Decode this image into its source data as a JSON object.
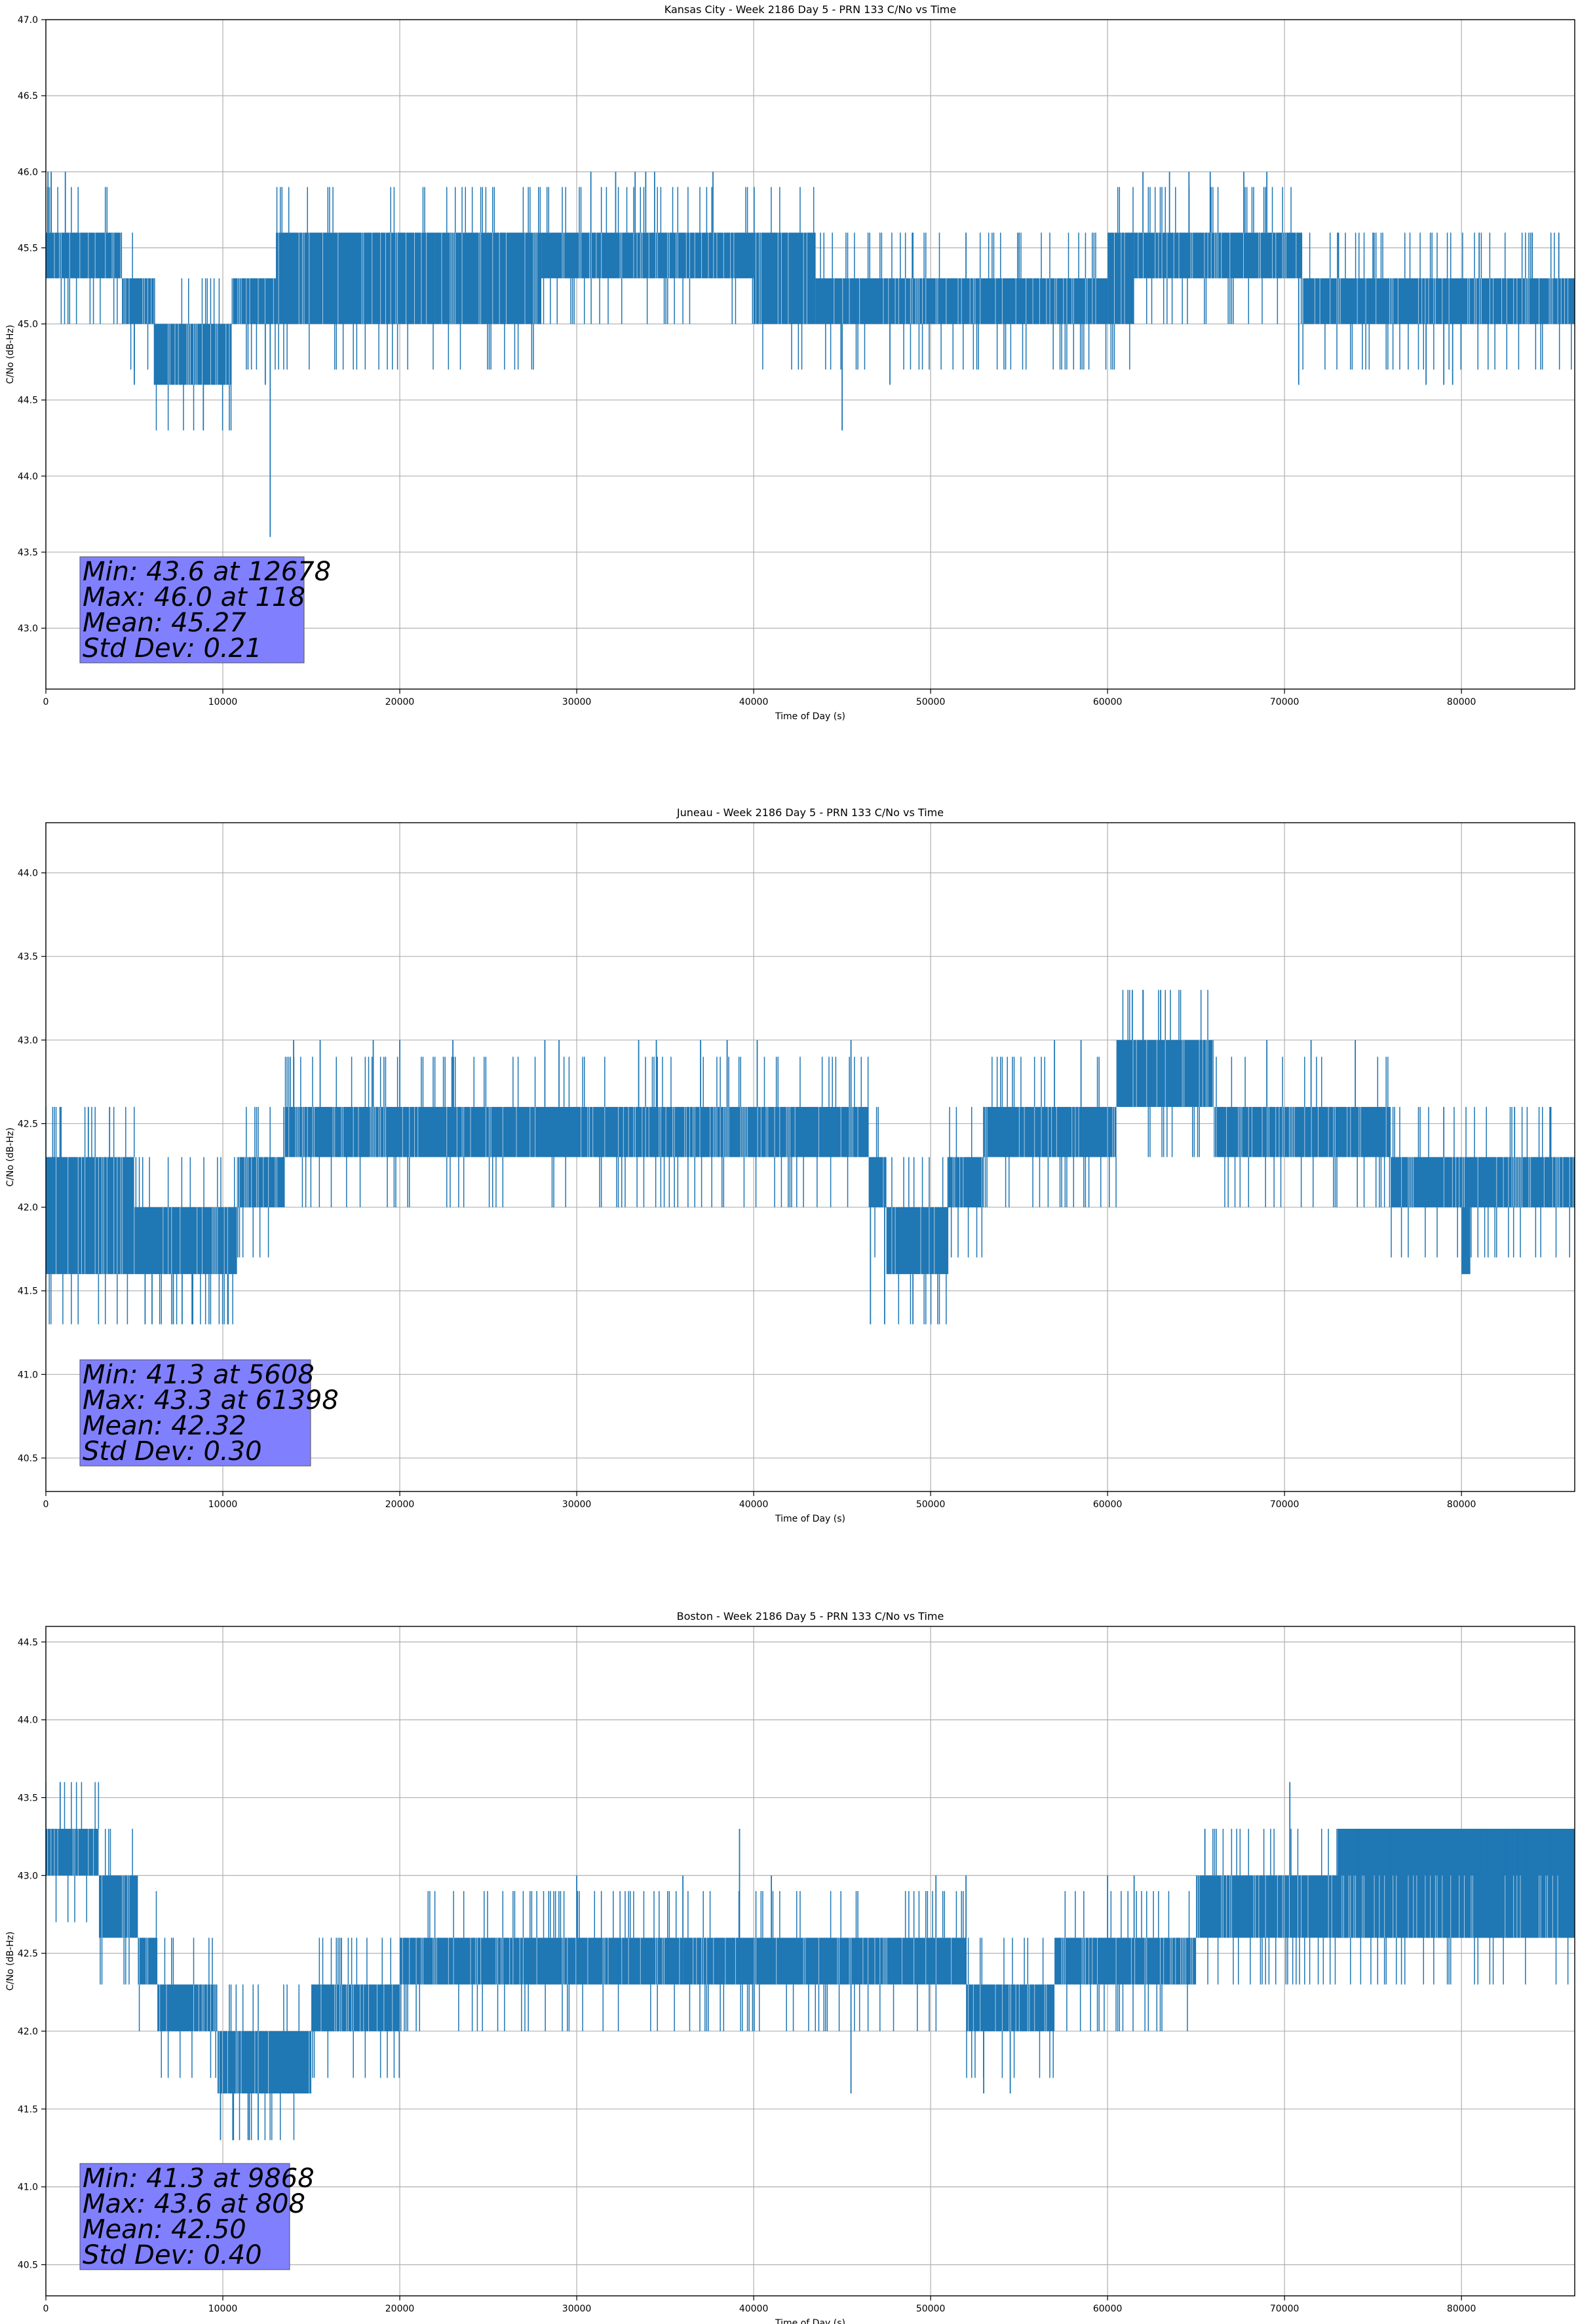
{
  "colors": {
    "series": "#1f77b4",
    "stats_box_fill": "#8080ff",
    "grid": "#b0b0b0",
    "background": "#ffffff"
  },
  "chart_data": [
    {
      "type": "line",
      "title": "Kansas City - Week 2186 Day 5 - PRN 133 C/No vs Time",
      "xlabel": "Time of Day (s)",
      "ylabel": "C/No (dB-Hz)",
      "xlim": [
        0,
        86400
      ],
      "ylim": [
        42.6,
        47.0
      ],
      "xticks": [
        0,
        10000,
        20000,
        30000,
        40000,
        50000,
        60000,
        70000,
        80000
      ],
      "yticks": [
        43.0,
        43.5,
        44.0,
        44.5,
        45.0,
        45.5,
        46.0,
        46.5,
        47.0
      ],
      "grid": true,
      "stats": [
        "Min: 43.6 at 12678",
        "Max: 46.0 at 118",
        "Mean: 45.27",
        "Std Dev: 0.21"
      ],
      "bands": [
        {
          "x": [
            0,
            2000
          ],
          "low": 45.3,
          "high": 45.6
        },
        {
          "x": [
            2000,
            4300
          ],
          "low": 45.3,
          "high": 45.6
        },
        {
          "x": [
            4300,
            5700
          ],
          "low": 45.0,
          "high": 45.3
        },
        {
          "x": [
            5700,
            6100
          ],
          "low": 45.0,
          "high": 45.3
        },
        {
          "x": [
            6100,
            10500
          ],
          "low": 44.6,
          "high": 45.0
        },
        {
          "x": [
            10500,
            13000
          ],
          "low": 45.0,
          "high": 45.3
        },
        {
          "x": [
            13000,
            22000
          ],
          "low": 45.0,
          "high": 45.6
        },
        {
          "x": [
            22000,
            28000
          ],
          "low": 45.0,
          "high": 45.6
        },
        {
          "x": [
            28000,
            40000
          ],
          "low": 45.3,
          "high": 45.6
        },
        {
          "x": [
            40000,
            43500
          ],
          "low": 45.0,
          "high": 45.6
        },
        {
          "x": [
            43500,
            60000
          ],
          "low": 45.0,
          "high": 45.3
        },
        {
          "x": [
            60000,
            61500
          ],
          "low": 45.0,
          "high": 45.6
        },
        {
          "x": [
            61500,
            71000
          ],
          "low": 45.3,
          "high": 45.6
        },
        {
          "x": [
            71000,
            86400
          ],
          "low": 45.0,
          "high": 45.3
        }
      ],
      "spikes": [
        {
          "x": 118,
          "y": 46.0
        },
        {
          "x": 300,
          "y": 46.0
        },
        {
          "x": 1100,
          "y": 46.0
        },
        {
          "x": 8900,
          "y": 44.3
        },
        {
          "x": 12678,
          "y": 43.6
        },
        {
          "x": 12400,
          "y": 44.6
        },
        {
          "x": 5000,
          "y": 44.6
        },
        {
          "x": 9800,
          "y": 44.6
        },
        {
          "x": 30800,
          "y": 46.0
        },
        {
          "x": 32200,
          "y": 46.0
        },
        {
          "x": 33300,
          "y": 46.0
        },
        {
          "x": 33900,
          "y": 46.0
        },
        {
          "x": 34400,
          "y": 46.0
        },
        {
          "x": 37700,
          "y": 46.0
        },
        {
          "x": 45000,
          "y": 44.3
        },
        {
          "x": 47700,
          "y": 44.6
        },
        {
          "x": 49000,
          "y": 45.6
        },
        {
          "x": 52000,
          "y": 45.6
        },
        {
          "x": 55000,
          "y": 45.6
        },
        {
          "x": 62000,
          "y": 46.0
        },
        {
          "x": 63500,
          "y": 46.0
        },
        {
          "x": 64600,
          "y": 46.0
        },
        {
          "x": 65800,
          "y": 46.0
        },
        {
          "x": 67700,
          "y": 46.0
        },
        {
          "x": 69000,
          "y": 46.0
        },
        {
          "x": 70800,
          "y": 44.6
        },
        {
          "x": 78000,
          "y": 44.6
        },
        {
          "x": 79000,
          "y": 44.6
        },
        {
          "x": 79500,
          "y": 44.6
        },
        {
          "x": 73000,
          "y": 45.6
        },
        {
          "x": 75000,
          "y": 45.6
        },
        {
          "x": 81000,
          "y": 45.6
        },
        {
          "x": 84000,
          "y": 45.6
        },
        {
          "x": 85500,
          "y": 45.6
        }
      ]
    },
    {
      "type": "line",
      "title": "Juneau - Week 2186 Day 5 - PRN 133 C/No vs Time",
      "xlabel": "Time of Day (s)",
      "ylabel": "C/No (dB-Hz)",
      "xlim": [
        0,
        86400
      ],
      "ylim": [
        40.3,
        44.3
      ],
      "xticks": [
        0,
        10000,
        20000,
        30000,
        40000,
        50000,
        60000,
        70000,
        80000
      ],
      "yticks": [
        40.5,
        41.0,
        41.5,
        42.0,
        42.5,
        43.0,
        43.5,
        44.0
      ],
      "grid": true,
      "stats": [
        "Min: 41.3 at 5608",
        "Max: 43.3 at 61398",
        "Mean: 42.32",
        "Std Dev: 0.30"
      ],
      "bands": [
        {
          "x": [
            0,
            5000
          ],
          "low": 41.6,
          "high": 42.3
        },
        {
          "x": [
            5000,
            10800
          ],
          "low": 41.6,
          "high": 42.0
        },
        {
          "x": [
            10800,
            13500
          ],
          "low": 42.0,
          "high": 42.3
        },
        {
          "x": [
            13500,
            27500
          ],
          "low": 42.3,
          "high": 42.6
        },
        {
          "x": [
            27500,
            46500
          ],
          "low": 42.3,
          "high": 42.6
        },
        {
          "x": [
            46500,
            47500
          ],
          "low": 42.0,
          "high": 42.3
        },
        {
          "x": [
            47500,
            51000
          ],
          "low": 41.6,
          "high": 42.0
        },
        {
          "x": [
            51000,
            53000
          ],
          "low": 42.0,
          "high": 42.3
        },
        {
          "x": [
            53000,
            60500
          ],
          "low": 42.3,
          "high": 42.6
        },
        {
          "x": [
            60500,
            66000
          ],
          "low": 42.6,
          "high": 43.0
        },
        {
          "x": [
            66000,
            76000
          ],
          "low": 42.3,
          "high": 42.6
        },
        {
          "x": [
            76000,
            86400
          ],
          "low": 42.0,
          "high": 42.3
        },
        {
          "x": [
            80000,
            80500
          ],
          "low": 41.6,
          "high": 42.0
        }
      ],
      "spikes": [
        {
          "x": 5608,
          "y": 41.3
        },
        {
          "x": 6000,
          "y": 41.3
        },
        {
          "x": 7200,
          "y": 41.3
        },
        {
          "x": 7700,
          "y": 41.3
        },
        {
          "x": 8300,
          "y": 41.3
        },
        {
          "x": 10300,
          "y": 41.3
        },
        {
          "x": 800,
          "y": 42.6
        },
        {
          "x": 2400,
          "y": 42.6
        },
        {
          "x": 3600,
          "y": 42.6
        },
        {
          "x": 14000,
          "y": 43.0
        },
        {
          "x": 15500,
          "y": 43.0
        },
        {
          "x": 18500,
          "y": 43.0
        },
        {
          "x": 20000,
          "y": 43.0
        },
        {
          "x": 23000,
          "y": 43.0
        },
        {
          "x": 28200,
          "y": 43.0
        },
        {
          "x": 29000,
          "y": 43.0
        },
        {
          "x": 33500,
          "y": 43.0
        },
        {
          "x": 34500,
          "y": 43.0
        },
        {
          "x": 37000,
          "y": 43.0
        },
        {
          "x": 38500,
          "y": 43.0
        },
        {
          "x": 40200,
          "y": 43.0
        },
        {
          "x": 45500,
          "y": 43.0
        },
        {
          "x": 46600,
          "y": 41.3
        },
        {
          "x": 47400,
          "y": 41.3
        },
        {
          "x": 49000,
          "y": 41.3
        },
        {
          "x": 57000,
          "y": 43.0
        },
        {
          "x": 58500,
          "y": 43.0
        },
        {
          "x": 61398,
          "y": 43.3
        },
        {
          "x": 62000,
          "y": 43.3
        },
        {
          "x": 63000,
          "y": 43.3
        },
        {
          "x": 69000,
          "y": 43.0
        },
        {
          "x": 71500,
          "y": 43.0
        },
        {
          "x": 74000,
          "y": 43.0
        },
        {
          "x": 79000,
          "y": 42.6
        },
        {
          "x": 83000,
          "y": 42.6
        },
        {
          "x": 85000,
          "y": 42.6
        }
      ]
    },
    {
      "type": "line",
      "title": "Boston - Week 2186 Day 5 - PRN 133 C/No vs Time",
      "xlabel": "Time of Day (s)",
      "ylabel": "C/No (dB-Hz)",
      "xlim": [
        0,
        86400
      ],
      "ylim": [
        40.3,
        44.6
      ],
      "xticks": [
        0,
        10000,
        20000,
        30000,
        40000,
        50000,
        60000,
        70000,
        80000
      ],
      "yticks": [
        40.5,
        41.0,
        41.5,
        42.0,
        42.5,
        43.0,
        43.5,
        44.0,
        44.5
      ],
      "grid": true,
      "stats": [
        "Min: 41.3 at 9868",
        "Max: 43.6 at 808",
        "Mean: 42.50",
        "Std Dev: 0.40"
      ],
      "bands": [
        {
          "x": [
            0,
            3000
          ],
          "low": 43.0,
          "high": 43.3
        },
        {
          "x": [
            3000,
            5200
          ],
          "low": 42.6,
          "high": 43.0
        },
        {
          "x": [
            5200,
            6300
          ],
          "low": 42.3,
          "high": 42.6
        },
        {
          "x": [
            6300,
            9700
          ],
          "low": 42.0,
          "high": 42.3
        },
        {
          "x": [
            9700,
            15000
          ],
          "low": 41.6,
          "high": 42.0
        },
        {
          "x": [
            15000,
            20000
          ],
          "low": 42.0,
          "high": 42.3
        },
        {
          "x": [
            20000,
            36000
          ],
          "low": 42.3,
          "high": 42.6
        },
        {
          "x": [
            36000,
            52000
          ],
          "low": 42.3,
          "high": 42.6
        },
        {
          "x": [
            52000,
            57000
          ],
          "low": 42.0,
          "high": 42.3
        },
        {
          "x": [
            57000,
            65000
          ],
          "low": 42.3,
          "high": 42.6
        },
        {
          "x": [
            65000,
            86400
          ],
          "low": 42.6,
          "high": 43.0
        },
        {
          "x": [
            73000,
            86400
          ],
          "low": 42.6,
          "high": 43.3
        }
      ],
      "spikes": [
        {
          "x": 808,
          "y": 43.6
        },
        {
          "x": 9868,
          "y": 41.3
        },
        {
          "x": 10600,
          "y": 41.3
        },
        {
          "x": 11500,
          "y": 41.3
        },
        {
          "x": 12000,
          "y": 41.3
        },
        {
          "x": 16700,
          "y": 42.6
        },
        {
          "x": 30000,
          "y": 43.0
        },
        {
          "x": 36000,
          "y": 43.0
        },
        {
          "x": 39200,
          "y": 43.3
        },
        {
          "x": 41000,
          "y": 43.0
        },
        {
          "x": 45500,
          "y": 41.6
        },
        {
          "x": 50300,
          "y": 43.0
        },
        {
          "x": 52000,
          "y": 43.0
        },
        {
          "x": 53000,
          "y": 41.6
        },
        {
          "x": 54500,
          "y": 41.6
        },
        {
          "x": 60000,
          "y": 43.0
        },
        {
          "x": 61500,
          "y": 43.0
        },
        {
          "x": 65500,
          "y": 43.3
        },
        {
          "x": 70300,
          "y": 43.6
        },
        {
          "x": 76000,
          "y": 43.3
        }
      ]
    }
  ]
}
